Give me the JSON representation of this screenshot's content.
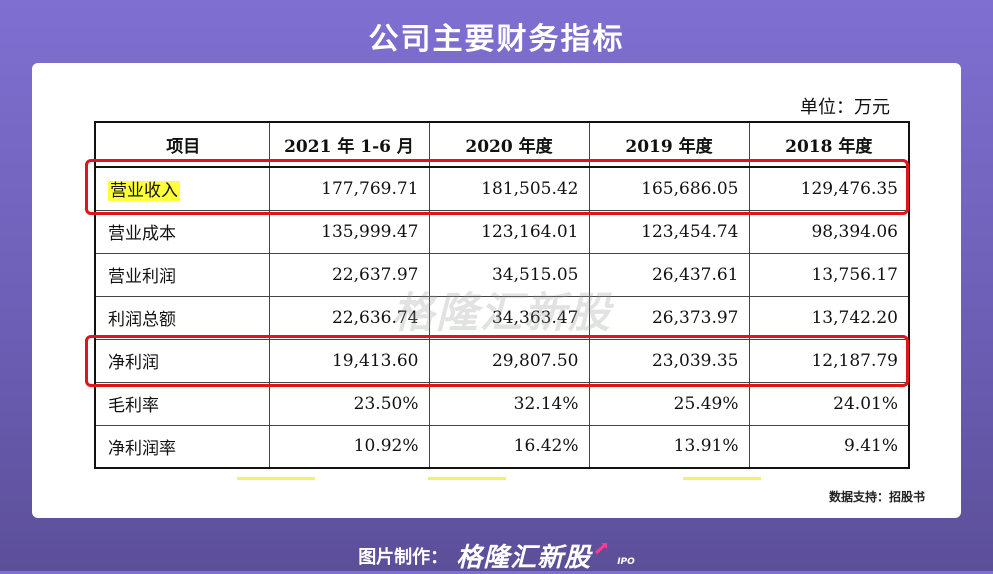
{
  "title": "公司主要财务指标",
  "unit": "单位：万元",
  "table": {
    "headers": [
      "项目",
      "2021 年 1-6 月",
      "2020 年度",
      "2019 年度",
      "2018 年度"
    ],
    "rows": [
      {
        "label": "营业收入",
        "values": [
          "177,769.71",
          "181,505.42",
          "165,686.05",
          "129,476.35"
        ],
        "highlighted": true
      },
      {
        "label": "营业成本",
        "values": [
          "135,999.47",
          "123,164.01",
          "123,454.74",
          "98,394.06"
        ]
      },
      {
        "label": "营业利润",
        "values": [
          "22,637.97",
          "34,515.05",
          "26,437.61",
          "13,756.17"
        ]
      },
      {
        "label": "利润总额",
        "values": [
          "22,636.74",
          "34,363.47",
          "26,373.97",
          "13,742.20"
        ]
      },
      {
        "label": "净利润",
        "values": [
          "19,413.60",
          "29,807.50",
          "23,039.35",
          "12,187.79"
        ]
      },
      {
        "label": "毛利率",
        "values": [
          "23.50%",
          "32.14%",
          "25.49%",
          "24.01%"
        ]
      },
      {
        "label": "净利润率",
        "values": [
          "10.92%",
          "16.42%",
          "13.91%",
          "9.41%"
        ]
      }
    ]
  },
  "watermark": "格隆汇新股",
  "source": "数据支持：招股书",
  "footer": {
    "label": "图片制作：",
    "logo": "格隆汇新股",
    "logo_suffix": "IPO"
  },
  "colors": {
    "accent_red": "#e0141a",
    "highlight_yellow": "#ffff3c",
    "background_purple": "#7f6fd1"
  }
}
